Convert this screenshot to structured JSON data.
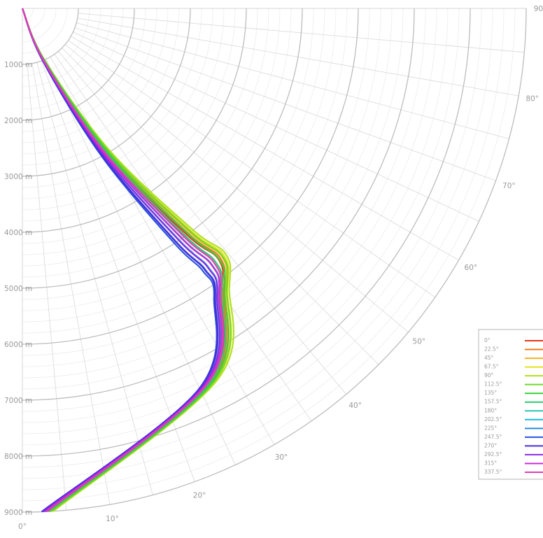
{
  "chart_data": {
    "type": "line",
    "projection": "quarter-polar",
    "grid": true,
    "legend_position": "bottom-right",
    "radial_axis": {
      "unit": "m",
      "range": [
        0,
        9000
      ],
      "ticks": [
        1000,
        2000,
        3000,
        4000,
        5000,
        6000,
        7000,
        8000,
        9000
      ],
      "tick_labels": [
        "1000 m",
        "2000 m",
        "3000 m",
        "4000 m",
        "5000 m",
        "6000 m",
        "7000 m",
        "8000 m",
        "9000 m"
      ]
    },
    "angular_axis": {
      "unit": "deg",
      "range": [
        0,
        90
      ],
      "tick_labels": [
        "0°",
        "10°",
        "20°",
        "30°",
        "40°",
        "50°",
        "60°",
        "70°",
        "80°",
        "90°"
      ]
    },
    "series": [
      {
        "name": "0°",
        "color": "#e8341c",
        "points": [
          [
            0,
            0
          ],
          [
            1000,
            22
          ],
          [
            3000,
            30
          ],
          [
            5000,
            36
          ],
          [
            5700,
            38
          ],
          [
            6200,
            35
          ],
          [
            7500,
            26
          ],
          [
            9000,
            3
          ]
        ]
      },
      {
        "name": "22.5°",
        "color": "#ef7a1a",
        "points": [
          [
            0,
            0
          ],
          [
            1000,
            22.3
          ],
          [
            3000,
            30.4
          ],
          [
            5000,
            36.4
          ],
          [
            5700,
            38.4
          ],
          [
            6200,
            35.4
          ],
          [
            7500,
            26.4
          ],
          [
            9000,
            3.1
          ]
        ]
      },
      {
        "name": "45°",
        "color": "#f2b21e",
        "points": [
          [
            0,
            0
          ],
          [
            1000,
            22.6
          ],
          [
            3000,
            30.8
          ],
          [
            5000,
            36.8
          ],
          [
            5700,
            38.8
          ],
          [
            6200,
            35.8
          ],
          [
            7500,
            26.8
          ],
          [
            9000,
            3.2
          ]
        ]
      },
      {
        "name": "67.5°",
        "color": "#e3e31e",
        "points": [
          [
            0,
            0
          ],
          [
            1000,
            22.9
          ],
          [
            3000,
            31.2
          ],
          [
            5000,
            37.2
          ],
          [
            5700,
            39.2
          ],
          [
            6200,
            36.2
          ],
          [
            7500,
            27.2
          ],
          [
            9000,
            3.4
          ]
        ]
      },
      {
        "name": "90°",
        "color": "#b2e01e",
        "points": [
          [
            0,
            0
          ],
          [
            1000,
            23.2
          ],
          [
            3000,
            31.6
          ],
          [
            5000,
            37.6
          ],
          [
            5700,
            39.6
          ],
          [
            6200,
            36.6
          ],
          [
            7500,
            27.6
          ],
          [
            9000,
            3.5
          ]
        ]
      },
      {
        "name": "112.5°",
        "color": "#6fd92a",
        "points": [
          [
            0,
            0
          ],
          [
            1000,
            23
          ],
          [
            3000,
            31.2
          ],
          [
            5000,
            37
          ],
          [
            5700,
            38.9
          ],
          [
            6200,
            36.1
          ],
          [
            7500,
            27.1
          ],
          [
            9000,
            3.3
          ]
        ]
      },
      {
        "name": "135°",
        "color": "#35cf3c",
        "points": [
          [
            0,
            0
          ],
          [
            1000,
            22.7
          ],
          [
            3000,
            30.7
          ],
          [
            5000,
            36.3
          ],
          [
            5700,
            38.1
          ],
          [
            6200,
            35.6
          ],
          [
            7500,
            26.7
          ],
          [
            9000,
            3.1
          ]
        ]
      },
      {
        "name": "157.5°",
        "color": "#2ec978",
        "points": [
          [
            0,
            0
          ],
          [
            1000,
            22.4
          ],
          [
            3000,
            30.2
          ],
          [
            5000,
            35.6
          ],
          [
            5700,
            37.3
          ],
          [
            6200,
            35.1
          ],
          [
            7500,
            26.2
          ],
          [
            9000,
            2.9
          ]
        ]
      },
      {
        "name": "180°",
        "color": "#2ec4b4",
        "points": [
          [
            0,
            0
          ],
          [
            1000,
            22
          ],
          [
            3000,
            29.6
          ],
          [
            5000,
            34.8
          ],
          [
            5700,
            36.5
          ],
          [
            6200,
            34.6
          ],
          [
            7500,
            25.8
          ],
          [
            9000,
            2.7
          ]
        ]
      },
      {
        "name": "202.5°",
        "color": "#1eb8e6",
        "points": [
          [
            0,
            0
          ],
          [
            1000,
            21.7
          ],
          [
            3000,
            29.1
          ],
          [
            5000,
            34.1
          ],
          [
            5700,
            35.7
          ],
          [
            6200,
            34.2
          ],
          [
            7500,
            25.4
          ],
          [
            9000,
            2.5
          ]
        ]
      },
      {
        "name": "225°",
        "color": "#2a8ae8",
        "points": [
          [
            0,
            0
          ],
          [
            1000,
            21.4
          ],
          [
            3000,
            28.6
          ],
          [
            5000,
            33.4
          ],
          [
            5700,
            35
          ],
          [
            6200,
            33.8
          ],
          [
            7500,
            25
          ],
          [
            9000,
            2.3
          ]
        ]
      },
      {
        "name": "247.5°",
        "color": "#2a55e0",
        "points": [
          [
            0,
            0
          ],
          [
            1000,
            21.2
          ],
          [
            3000,
            28.2
          ],
          [
            5000,
            32.9
          ],
          [
            5700,
            34.5
          ],
          [
            6200,
            33.5
          ],
          [
            7500,
            24.8
          ],
          [
            9000,
            2.2
          ]
        ]
      },
      {
        "name": "270°",
        "color": "#4b2ad8",
        "points": [
          [
            0,
            0
          ],
          [
            1000,
            21.4
          ],
          [
            3000,
            28.5
          ],
          [
            5000,
            33.3
          ],
          [
            5700,
            34.9
          ],
          [
            6200,
            33.7
          ],
          [
            7500,
            24.9
          ],
          [
            9000,
            2.2
          ]
        ]
      },
      {
        "name": "292.5°",
        "color": "#8c2ae0",
        "points": [
          [
            0,
            0
          ],
          [
            1000,
            21.7
          ],
          [
            3000,
            29
          ],
          [
            5000,
            34
          ],
          [
            5700,
            35.6
          ],
          [
            6200,
            34.1
          ],
          [
            7500,
            25.3
          ],
          [
            9000,
            2.4
          ]
        ]
      },
      {
        "name": "315°",
        "color": "#c82ad8",
        "points": [
          [
            0,
            0
          ],
          [
            1000,
            22
          ],
          [
            3000,
            29.5
          ],
          [
            5000,
            34.7
          ],
          [
            5700,
            36.4
          ],
          [
            6200,
            34.5
          ],
          [
            7500,
            25.6
          ],
          [
            9000,
            2.6
          ]
        ]
      },
      {
        "name": "337.5°",
        "color": "#e23cb2",
        "points": [
          [
            0,
            0
          ],
          [
            1000,
            22.2
          ],
          [
            3000,
            29.9
          ],
          [
            5000,
            35.3
          ],
          [
            5700,
            37
          ],
          [
            6200,
            34.8
          ],
          [
            7500,
            25.9
          ],
          [
            9000,
            2.8
          ]
        ]
      }
    ]
  }
}
